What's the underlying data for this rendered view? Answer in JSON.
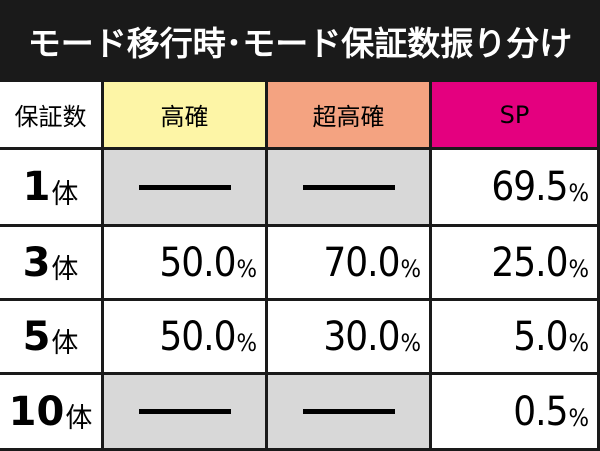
{
  "title": "モード移行時･モード保証数振り分け",
  "headers": [
    "保証数",
    "高確",
    "超高確",
    "SP"
  ],
  "header_colors": [
    "#ffffff",
    "#fdf5a6",
    "#f4a381",
    "#e4007f"
  ],
  "empty_color": "#d8d8d8",
  "rows": [
    {
      "num": "1",
      "unit": "体",
      "values": [
        null,
        null,
        {
          "n": "69.5",
          "p": "%"
        }
      ]
    },
    {
      "num": "3",
      "unit": "体",
      "values": [
        {
          "n": "50.0",
          "p": "%"
        },
        {
          "n": "70.0",
          "p": "%"
        },
        {
          "n": "25.0",
          "p": "%"
        }
      ]
    },
    {
      "num": "5",
      "unit": "体",
      "values": [
        {
          "n": "50.0",
          "p": "%"
        },
        {
          "n": "30.0",
          "p": "%"
        },
        {
          "n": "5.0",
          "p": "%"
        }
      ]
    },
    {
      "num": "10",
      "unit": "体",
      "values": [
        null,
        null,
        {
          "n": "0.5",
          "p": "%"
        }
      ]
    }
  ]
}
